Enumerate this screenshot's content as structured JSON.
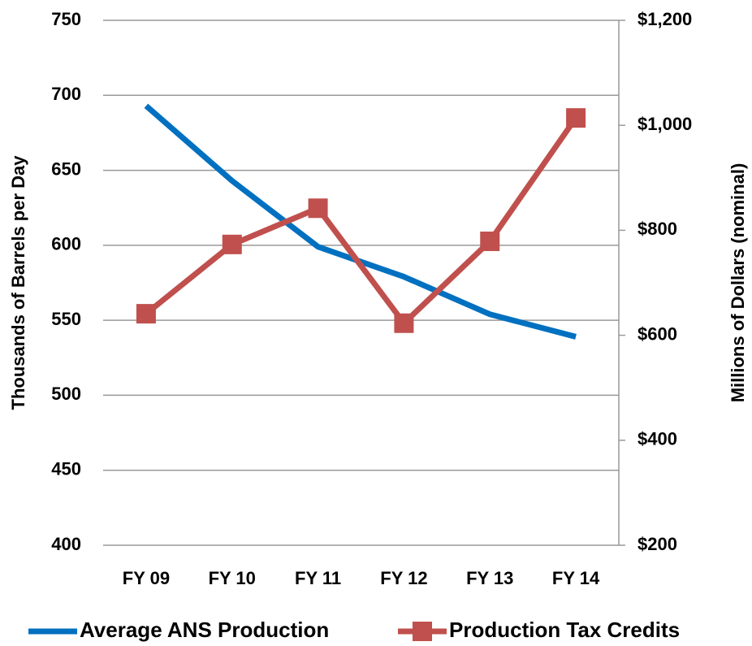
{
  "chart_data": {
    "type": "line",
    "categories": [
      "FY 09",
      "FY 10",
      "FY 11",
      "FY 12",
      "FY 13",
      "FY 14"
    ],
    "ylabel": "Thousands of Barrels per Day",
    "y2label": "Millions of Dollars (nominal)",
    "ylim": [
      400,
      750
    ],
    "yticks": [
      400,
      450,
      500,
      550,
      600,
      650,
      700,
      750
    ],
    "y2lim": [
      200,
      1200
    ],
    "y2ticks": [
      {
        "value": 200,
        "label": "$200"
      },
      {
        "value": 400,
        "label": "$400"
      },
      {
        "value": 600,
        "label": "$600"
      },
      {
        "value": 800,
        "label": "$800"
      },
      {
        "value": 1000,
        "label": "$1,000"
      },
      {
        "value": 1200,
        "label": "$1,200"
      }
    ],
    "grid": true,
    "legend": "bottom",
    "series": [
      {
        "name": "Average ANS Production",
        "color": "#0070c0",
        "values": [
          693,
          643,
          599,
          579,
          554,
          539
        ]
      },
      {
        "name": "Production Tax Credits",
        "color": "#c0504d",
        "axis": "y2",
        "marker": "square",
        "values": [
          641,
          773,
          842,
          623,
          779,
          1014
        ]
      }
    ]
  }
}
